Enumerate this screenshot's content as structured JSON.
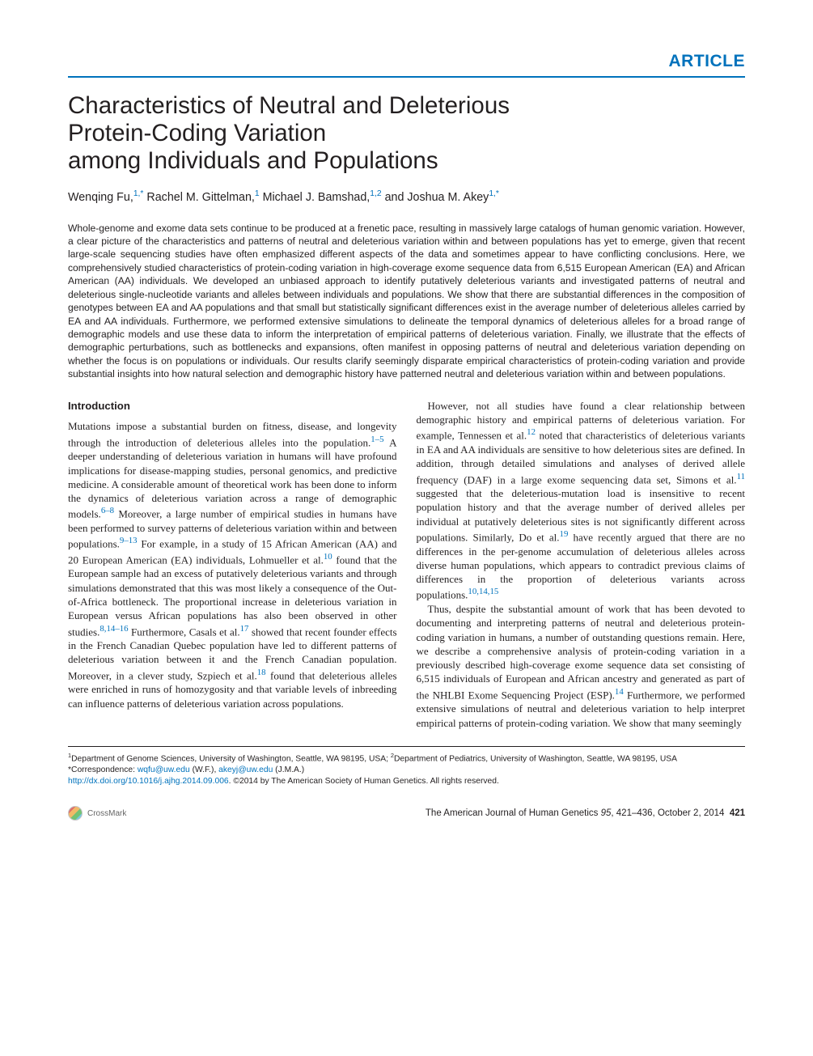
{
  "badge": "ARTICLE",
  "title_line1": "Characteristics of Neutral and Deleterious",
  "title_line2": "Protein-Coding Variation",
  "title_line3": "among Individuals and Populations",
  "authors": {
    "a1_name": "Wenqing Fu,",
    "a1_aff": "1,",
    "a1_star": "*",
    "a2_name": " Rachel M. Gittelman,",
    "a2_aff": "1",
    "a3_name": " Michael J. Bamshad,",
    "a3_aff": "1,2",
    "a4_and": " and Joshua M. Akey",
    "a4_aff": "1,",
    "a4_star": "*"
  },
  "abstract": "Whole-genome and exome data sets continue to be produced at a frenetic pace, resulting in massively large catalogs of human genomic variation. However, a clear picture of the characteristics and patterns of neutral and deleterious variation within and between populations has yet to emerge, given that recent large-scale sequencing studies have often emphasized different aspects of the data and sometimes appear to have conflicting conclusions. Here, we comprehensively studied characteristics of protein-coding variation in high-coverage exome sequence data from 6,515 European American (EA) and African American (AA) individuals. We developed an unbiased approach to identify putatively deleterious variants and investigated patterns of neutral and deleterious single-nucleotide variants and alleles between individuals and populations. We show that there are substantial differences in the composition of genotypes between EA and AA populations and that small but statistically significant differences exist in the average number of deleterious alleles carried by EA and AA individuals. Furthermore, we performed extensive simulations to delineate the temporal dynamics of deleterious alleles for a broad range of demographic models and use these data to inform the interpretation of empirical patterns of deleterious variation. Finally, we illustrate that the effects of demographic perturbations, such as bottlenecks and expansions, often manifest in opposing patterns of neutral and deleterious variation depending on whether the focus is on populations or individuals. Our results clarify seemingly disparate empirical characteristics of protein-coding variation and provide substantial insights into how natural selection and demographic history have patterned neutral and deleterious variation within and between populations.",
  "intro_head": "Introduction",
  "p1a": "Mutations impose a substantial burden on fitness, disease, and longevity through the introduction of deleterious alleles into the population.",
  "c1": "1–5",
  "p1b": " A deeper understanding of deleterious variation in humans will have profound implications for disease-mapping studies, personal genomics, and predictive medicine. A considerable amount of theoretical work has been done to inform the dynamics of deleterious variation across a range of demographic models.",
  "c2": "6–8",
  "p1c": " Moreover, a large number of empirical studies in humans have been performed to survey patterns of deleterious variation within and between populations.",
  "c3": "9–13",
  "p1d": " For example, in a study of 15 African American (AA) and 20 European American (EA) individuals, Lohmueller et al.",
  "c4": "10",
  "p1e": " found that the European sample had an excess of putatively deleterious variants and through simulations demonstrated that this was most likely a consequence of the Out-of-Africa bottleneck. The proportional increase in deleterious variation in European versus African populations has also been observed in other studies.",
  "c5": "8,14–16",
  "p1f": " Furthermore, Casals et al.",
  "c6": "17",
  "p1g": " showed that recent founder effects in the French Canadian Quebec population have led to different patterns of deleterious variation between it and the French Canadian population. Moreover, in a clever study, Szpiech et al.",
  "c7": "18",
  "p1h": " found that deleterious alleles were enriched in runs of homozygosity and that variable levels of inbreeding can influence patterns of deleterious variation across populations.",
  "p2a": "However, not all studies have found a clear relationship between demographic history and empirical patterns of deleterious variation. For example, Tennessen et al.",
  "c8": "12",
  "p2b": " noted that characteristics of deleterious variants in EA and AA individuals are sensitive to how deleterious sites are defined. In addition, through detailed simulations and analyses of derived allele frequency (DAF) in a large exome sequencing data set, Simons et al.",
  "c9": "11",
  "p2c": " suggested that the deleterious-mutation load is insensitive to recent population history and that the average number of derived alleles per individual at putatively deleterious sites is not significantly different across populations. Similarly, Do et al.",
  "c10": "19",
  "p2d": " have recently argued that there are no differences in the per-genome accumulation of deleterious alleles across diverse human populations, which appears to contradict previous claims of differences in the proportion of deleterious variants across populations.",
  "c11": "10,14,15",
  "p3a": "Thus, despite the substantial amount of work that has been devoted to documenting and interpreting patterns of neutral and deleterious protein-coding variation in humans, a number of outstanding questions remain. Here, we describe a comprehensive analysis of protein-coding variation in a previously described high-coverage exome sequence data set consisting of 6,515 individuals of European and African ancestry and generated as part of the NHLBI Exome Sequencing Project (ESP).",
  "c12": "14",
  "p3b": " Furthermore, we performed extensive simulations of neutral and deleterious variation to help interpret empirical patterns of protein-coding variation. We show that many seemingly",
  "affil": {
    "s1": "1",
    "t1": "Department of Genome Sciences, University of Washington, Seattle, WA 98195, USA; ",
    "s2": "2",
    "t2": "Department of Pediatrics, University of Washington, Seattle, WA 98195, USA"
  },
  "corresp": {
    "label": "*Correspondence: ",
    "e1": "wqfu@uw.edu",
    "m1": " (W.F.), ",
    "e2": "akeyj@uw.edu",
    "m2": " (J.M.A.)"
  },
  "doi": {
    "url": "http://dx.doi.org/10.1016/j.ajhg.2014.09.006",
    "rest": ". ©2014 by The American Society of Human Genetics. All rights reserved."
  },
  "footer": {
    "crossmark": "CrossMark",
    "journal": "The American Journal of Human Genetics ",
    "vol": "95",
    "pages": ", 421–436, October 2, 2014",
    "pagenum": "421"
  }
}
